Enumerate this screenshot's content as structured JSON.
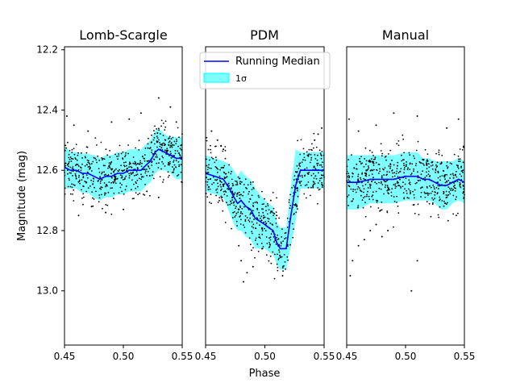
{
  "chart_data": {
    "type": "scatter",
    "ylabel": "Magnitude (mag)",
    "xlabel": "Phase",
    "ylim": [
      13.18,
      12.19
    ],
    "xlim": [
      0.45,
      0.55
    ],
    "x_ticks": [
      "0.45",
      "0.50",
      "0.55"
    ],
    "y_ticks": [
      12.2,
      12.4,
      12.6,
      12.8,
      13.0
    ],
    "y_tick_labels": [
      "12.2",
      "12.4",
      "12.6",
      "12.8",
      "13.0"
    ],
    "legend": {
      "placement": "top-center",
      "entries": [
        "Running Median",
        "1σ"
      ]
    },
    "colors": {
      "points": "#000000",
      "median": "#0000ff",
      "band": "#00ffff"
    },
    "panels": [
      {
        "title": "Lomb-Scargle",
        "median": [
          [
            0.45,
            12.59
          ],
          [
            0.455,
            12.6
          ],
          [
            0.46,
            12.6
          ],
          [
            0.465,
            12.61
          ],
          [
            0.47,
            12.61
          ],
          [
            0.475,
            12.62
          ],
          [
            0.48,
            12.63
          ],
          [
            0.485,
            12.62
          ],
          [
            0.49,
            12.62
          ],
          [
            0.495,
            12.61
          ],
          [
            0.5,
            12.61
          ],
          [
            0.505,
            12.6
          ],
          [
            0.51,
            12.6
          ],
          [
            0.515,
            12.6
          ],
          [
            0.52,
            12.58
          ],
          [
            0.523,
            12.57
          ],
          [
            0.527,
            12.54
          ],
          [
            0.53,
            12.53
          ],
          [
            0.535,
            12.54
          ],
          [
            0.54,
            12.55
          ],
          [
            0.545,
            12.56
          ],
          [
            0.55,
            12.56
          ]
        ],
        "sigma": [
          0.07,
          0.06,
          0.06,
          0.065,
          0.065,
          0.07,
          0.07,
          0.07,
          0.07,
          0.07,
          0.07,
          0.07,
          0.07,
          0.07,
          0.07,
          0.07,
          0.07,
          0.07,
          0.06,
          0.06,
          0.07,
          0.07
        ],
        "scatter": 0.06,
        "outliers": [
          [
            0.452,
            12.42
          ],
          [
            0.458,
            12.45
          ],
          [
            0.47,
            12.47
          ],
          [
            0.49,
            12.44
          ],
          [
            0.505,
            12.43
          ],
          [
            0.515,
            12.41
          ],
          [
            0.53,
            12.36
          ],
          [
            0.54,
            12.39
          ],
          [
            0.545,
            12.44
          ],
          [
            0.462,
            12.75
          ],
          [
            0.485,
            12.74
          ],
          [
            0.5,
            12.73
          ],
          [
            0.473,
            12.72
          ],
          [
            0.53,
            12.69
          ],
          [
            0.52,
            12.67
          ]
        ]
      },
      {
        "title": "PDM",
        "median": [
          [
            0.45,
            12.61
          ],
          [
            0.458,
            12.62
          ],
          [
            0.465,
            12.63
          ],
          [
            0.47,
            12.66
          ],
          [
            0.474,
            12.69
          ],
          [
            0.477,
            12.71
          ],
          [
            0.48,
            12.7
          ],
          [
            0.484,
            12.72
          ],
          [
            0.488,
            12.73
          ],
          [
            0.492,
            12.76
          ],
          [
            0.5,
            12.78
          ],
          [
            0.503,
            12.79
          ],
          [
            0.507,
            12.8
          ],
          [
            0.51,
            12.84
          ],
          [
            0.513,
            12.86
          ],
          [
            0.518,
            12.86
          ],
          [
            0.522,
            12.75
          ],
          [
            0.526,
            12.65
          ],
          [
            0.53,
            12.6
          ],
          [
            0.54,
            12.6
          ],
          [
            0.55,
            12.6
          ]
        ],
        "sigma": [
          0.06,
          0.06,
          0.06,
          0.08,
          0.09,
          0.09,
          0.1,
          0.1,
          0.1,
          0.1,
          0.08,
          0.08,
          0.08,
          0.07,
          0.07,
          0.07,
          0.1,
          0.12,
          0.06,
          0.06,
          0.06
        ],
        "scatter": 0.07,
        "outliers": [
          [
            0.455,
            12.47
          ],
          [
            0.46,
            12.5
          ],
          [
            0.463,
            12.52
          ],
          [
            0.465,
            12.53
          ],
          [
            0.545,
            12.48
          ],
          [
            0.548,
            12.46
          ],
          [
            0.542,
            12.5
          ],
          [
            0.478,
            12.85
          ],
          [
            0.48,
            12.9
          ],
          [
            0.482,
            12.97
          ],
          [
            0.485,
            12.94
          ],
          [
            0.49,
            12.92
          ],
          [
            0.505,
            12.7
          ],
          [
            0.51,
            12.75
          ],
          [
            0.498,
            12.86
          ],
          [
            0.515,
            12.95
          ]
        ]
      },
      {
        "title": "Manual",
        "median": [
          [
            0.45,
            12.64
          ],
          [
            0.46,
            12.64
          ],
          [
            0.47,
            12.63
          ],
          [
            0.48,
            12.63
          ],
          [
            0.49,
            12.63
          ],
          [
            0.5,
            12.62
          ],
          [
            0.51,
            12.62
          ],
          [
            0.515,
            12.63
          ],
          [
            0.52,
            12.63
          ],
          [
            0.525,
            12.64
          ],
          [
            0.53,
            12.65
          ],
          [
            0.535,
            12.65
          ],
          [
            0.54,
            12.64
          ],
          [
            0.545,
            12.63
          ],
          [
            0.55,
            12.64
          ]
        ],
        "sigma": [
          0.09,
          0.09,
          0.08,
          0.08,
          0.08,
          0.08,
          0.08,
          0.07,
          0.07,
          0.07,
          0.08,
          0.08,
          0.07,
          0.07,
          0.07
        ],
        "scatter": 0.07,
        "outliers": [
          [
            0.452,
            12.43
          ],
          [
            0.46,
            12.47
          ],
          [
            0.475,
            12.45
          ],
          [
            0.49,
            12.41
          ],
          [
            0.51,
            12.42
          ],
          [
            0.535,
            12.46
          ],
          [
            0.545,
            12.43
          ],
          [
            0.453,
            12.95
          ],
          [
            0.455,
            12.9
          ],
          [
            0.46,
            12.85
          ],
          [
            0.465,
            12.83
          ],
          [
            0.47,
            12.8
          ],
          [
            0.475,
            12.78
          ],
          [
            0.48,
            12.82
          ],
          [
            0.485,
            12.8
          ],
          [
            0.505,
            13.0
          ],
          [
            0.51,
            12.9
          ]
        ]
      }
    ]
  }
}
